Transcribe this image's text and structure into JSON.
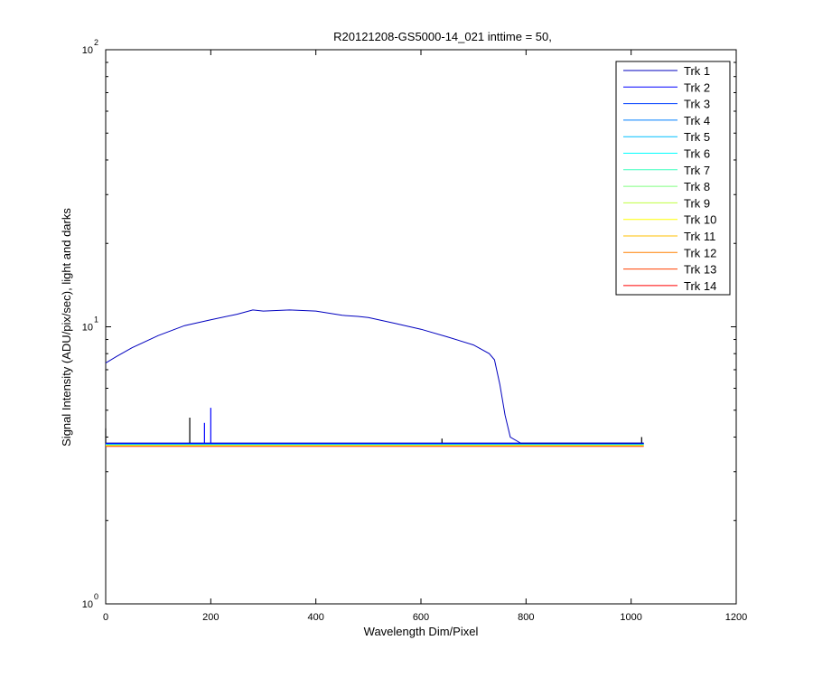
{
  "chart_data": {
    "type": "line",
    "title": "R20121208-GS5000-14_021 inttime = 50,",
    "xlabel": "Wavelength Dim/Pixel",
    "ylabel": "Signal Intensity (ADU/pix/sec), light and darks",
    "xlim": [
      0,
      1200
    ],
    "ylim": [
      1,
      100
    ],
    "yscale": "log",
    "grid": false,
    "legend_position": "top-right",
    "x_ticks": [
      "0",
      "200",
      "400",
      "600",
      "800",
      "1000",
      "1200"
    ],
    "y_ticks": [
      {
        "base": "10",
        "exp": "0"
      },
      {
        "base": "10",
        "exp": "1"
      },
      {
        "base": "10",
        "exp": "2"
      }
    ],
    "series": [
      {
        "name": "Trk 1",
        "color": "#0000bf",
        "points": [
          [
            0,
            7.4
          ],
          [
            20,
            7.8
          ],
          [
            50,
            8.4
          ],
          [
            100,
            9.3
          ],
          [
            150,
            10.1
          ],
          [
            200,
            10.6
          ],
          [
            250,
            11.1
          ],
          [
            280,
            11.5
          ],
          [
            300,
            11.4
          ],
          [
            350,
            11.5
          ],
          [
            400,
            11.4
          ],
          [
            450,
            11.0
          ],
          [
            480,
            10.9
          ],
          [
            500,
            10.8
          ],
          [
            550,
            10.3
          ],
          [
            600,
            9.8
          ],
          [
            650,
            9.2
          ],
          [
            700,
            8.6
          ],
          [
            730,
            8.0
          ],
          [
            740,
            7.6
          ],
          [
            750,
            6.2
          ],
          [
            760,
            4.8
          ],
          [
            770,
            4.0
          ],
          [
            790,
            3.8
          ],
          [
            1024,
            3.8
          ]
        ]
      },
      {
        "name": "Trk 2",
        "color": "#0000ff",
        "points": [
          [
            0,
            3.8
          ],
          [
            1024,
            3.8
          ]
        ],
        "spikes": [
          [
            188,
            4.5
          ],
          [
            200,
            5.1
          ]
        ]
      },
      {
        "name": "Trk 3",
        "color": "#0040ff",
        "points": [
          [
            0,
            3.79
          ],
          [
            1024,
            3.79
          ]
        ]
      },
      {
        "name": "Trk 4",
        "color": "#0080ff",
        "points": [
          [
            0,
            3.78
          ],
          [
            1024,
            3.78
          ]
        ]
      },
      {
        "name": "Trk 5",
        "color": "#00bfff",
        "points": [
          [
            0,
            3.78
          ],
          [
            1024,
            3.78
          ]
        ]
      },
      {
        "name": "Trk 6",
        "color": "#00ffff",
        "points": [
          [
            0,
            3.77
          ],
          [
            1024,
            3.77
          ]
        ]
      },
      {
        "name": "Trk 7",
        "color": "#40ffbf",
        "points": [
          [
            0,
            3.77
          ],
          [
            1024,
            3.77
          ]
        ]
      },
      {
        "name": "Trk 8",
        "color": "#80ff80",
        "points": [
          [
            0,
            3.76
          ],
          [
            1024,
            3.76
          ]
        ]
      },
      {
        "name": "Trk 9",
        "color": "#bfff40",
        "points": [
          [
            0,
            3.75
          ],
          [
            1024,
            3.75
          ]
        ]
      },
      {
        "name": "Trk 10",
        "color": "#ffff00",
        "points": [
          [
            0,
            3.74
          ],
          [
            1024,
            3.74
          ]
        ]
      },
      {
        "name": "Trk 11",
        "color": "#ffbf00",
        "points": [
          [
            0,
            3.73
          ],
          [
            1024,
            3.73
          ]
        ]
      },
      {
        "name": "Trk 12",
        "color": "#ff8000",
        "points": [
          [
            0,
            3.72
          ],
          [
            1024,
            3.72
          ]
        ]
      },
      {
        "name": "Trk 13",
        "color": "#ff4000",
        "points": [
          [
            0,
            3.71
          ],
          [
            1024,
            3.71
          ]
        ]
      },
      {
        "name": "Trk 14",
        "color": "#ff0000",
        "points": [
          [
            0,
            3.7
          ],
          [
            1024,
            3.7
          ]
        ]
      },
      {
        "name": "",
        "color": "#000000",
        "points": [
          [
            0,
            3.8
          ],
          [
            1024,
            3.8
          ]
        ],
        "spikes": [
          [
            0,
            4.3
          ],
          [
            160,
            4.7
          ],
          [
            640,
            3.95
          ],
          [
            1020,
            4.0
          ]
        ]
      }
    ]
  }
}
